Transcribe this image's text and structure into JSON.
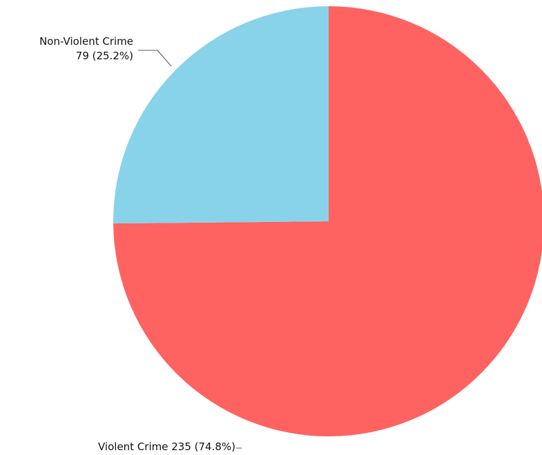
{
  "chart_data": {
    "type": "pie",
    "title": "",
    "slices": [
      {
        "label": "Violent Crime",
        "value": 235,
        "percent_label": "(74.8%)",
        "color": "#FF6361",
        "label_lines": [
          "Violent Crime 235 (74.8%)"
        ]
      },
      {
        "label": "Non-Violent Crime",
        "value": 79,
        "percent_label": "(25.2%)",
        "color": "#89D3EA",
        "label_lines": [
          "Non-Violent Crime",
          "79 (25.2%)"
        ]
      }
    ],
    "start_angle_deg": 0,
    "direction": "clockwise",
    "legend": "none"
  }
}
